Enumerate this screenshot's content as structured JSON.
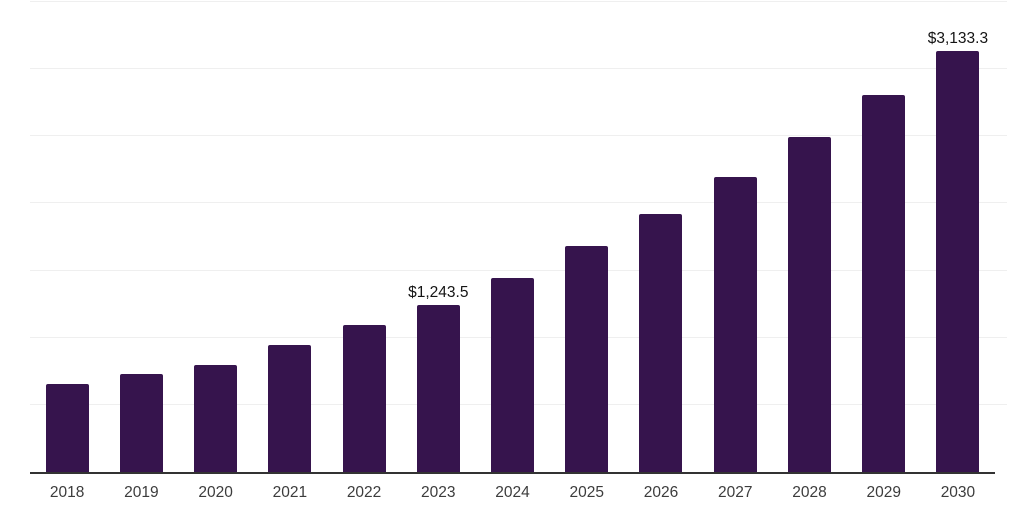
{
  "chart_data": {
    "type": "bar",
    "title": "",
    "xlabel": "",
    "ylabel": "",
    "categories": [
      "2018",
      "2019",
      "2020",
      "2021",
      "2022",
      "2023",
      "2024",
      "2025",
      "2026",
      "2027",
      "2028",
      "2029",
      "2030"
    ],
    "values": [
      655,
      733.5,
      797,
      945.5,
      1094.5,
      1243.5,
      1448,
      1683,
      1921,
      2196.5,
      2494.5,
      2807,
      3133.3
    ],
    "data_labels": {
      "2023": "$1,243.5",
      "2030": "$3,133.3"
    },
    "ylim": [
      0,
      3500
    ],
    "gridline_interval": 500,
    "grid": "horizontal",
    "legend": "none",
    "y_axis_tick_labels": "none",
    "colors": {
      "bar": "#36144D",
      "axis_line": "#333333",
      "gridline": "#efefef",
      "tick_label": "#3c3c3c",
      "data_label": "#141414",
      "background": "#ffffff"
    }
  }
}
